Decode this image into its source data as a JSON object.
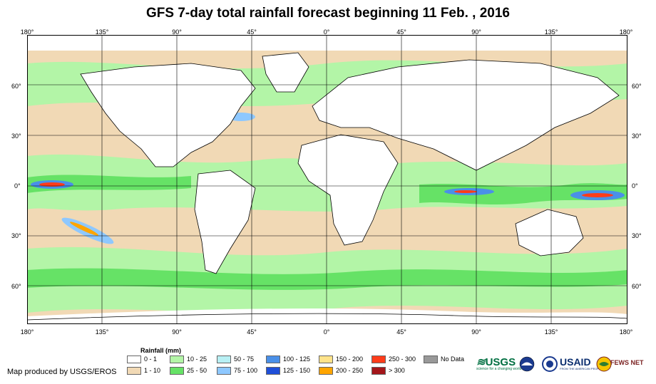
{
  "title": "GFS 7-day total rainfall forecast beginning 11 Feb. , 2016",
  "lon_labels": [
    "180°",
    "135°",
    "90°",
    "45°",
    "0°",
    "45°",
    "90°",
    "135°",
    "180°"
  ],
  "lat_labels": [
    "60°",
    "30°",
    "0°",
    "30°",
    "60°"
  ],
  "legend": {
    "title": "Rainfall (mm)",
    "items": [
      {
        "label": "0 - 1",
        "color": "#ffffff"
      },
      {
        "label": "1 - 10",
        "color": "#f1d9b5"
      },
      {
        "label": "10 - 25",
        "color": "#b3f5a7"
      },
      {
        "label": "25 - 50",
        "color": "#66e266"
      },
      {
        "label": "50 - 75",
        "color": "#b8f0f4"
      },
      {
        "label": "75 - 100",
        "color": "#8ec8ff"
      },
      {
        "label": "100 - 125",
        "color": "#4a90e8"
      },
      {
        "label": "125 - 150",
        "color": "#1f4fd8"
      },
      {
        "label": "150 - 200",
        "color": "#ffe38a"
      },
      {
        "label": "200 - 250",
        "color": "#ffa500"
      },
      {
        "label": "250 - 300",
        "color": "#ff3c1a"
      },
      {
        "label": "> 300",
        "color": "#a4161a"
      },
      {
        "label": "No Data",
        "color": "#999999"
      }
    ]
  },
  "credit": "Map produced by USGS/EROS",
  "logos": {
    "usgs": "USGS",
    "usgs_tagline": "science for a changing world",
    "usaid": "USAID",
    "usaid_tagline": "FROM THE AMERICAN PEOPLE",
    "fews": "FEWS NET"
  }
}
